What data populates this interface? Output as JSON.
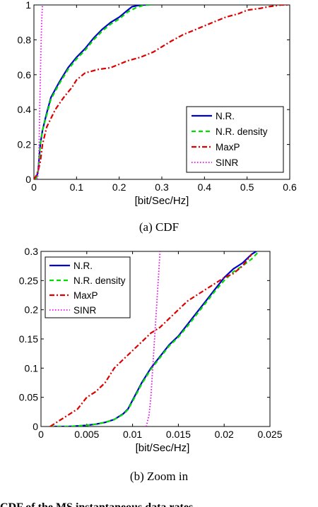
{
  "captions": {
    "top": "(a)  CDF",
    "bottom": "(b)  Zoom in"
  },
  "bottom_text_fragment": "CDF of the MS instantaneous data rates",
  "chart_data": [
    {
      "type": "line",
      "title": "",
      "xlabel": "[bit/Sec/Hz]",
      "ylabel": "",
      "xlim": [
        0,
        0.6
      ],
      "ylim": [
        0,
        1
      ],
      "xticks": [
        "0",
        "0.1",
        "0.2",
        "0.3",
        "0.4",
        "0.5",
        "0.6"
      ],
      "yticks": [
        "0",
        "0.2",
        "0.4",
        "0.6",
        "0.8",
        "1"
      ],
      "grid": false,
      "legend_position": "lower-right",
      "series": [
        {
          "name": "N.R.",
          "color": "#0000cc",
          "style": "solid",
          "x": [
            0.005,
            0.01,
            0.015,
            0.02,
            0.03,
            0.04,
            0.06,
            0.08,
            0.1,
            0.12,
            0.14,
            0.16,
            0.18,
            0.2,
            0.22,
            0.23,
            0.25,
            0.27
          ],
          "y": [
            0.0,
            0.05,
            0.2,
            0.28,
            0.38,
            0.47,
            0.56,
            0.64,
            0.7,
            0.75,
            0.81,
            0.86,
            0.9,
            0.93,
            0.97,
            0.99,
            1.0,
            1.0
          ]
        },
        {
          "name": "N.R. density",
          "color": "#00dd00",
          "style": "dashed",
          "x": [
            0.005,
            0.01,
            0.015,
            0.02,
            0.03,
            0.04,
            0.06,
            0.08,
            0.1,
            0.12,
            0.14,
            0.16,
            0.18,
            0.2,
            0.22,
            0.24,
            0.26,
            0.28
          ],
          "y": [
            0.0,
            0.05,
            0.2,
            0.28,
            0.37,
            0.46,
            0.55,
            0.63,
            0.69,
            0.74,
            0.8,
            0.85,
            0.89,
            0.92,
            0.96,
            0.985,
            1.0,
            1.0
          ]
        },
        {
          "name": "MaxP",
          "color": "#dd0000",
          "style": "dashdot",
          "x": [
            0.0,
            0.005,
            0.01,
            0.015,
            0.02,
            0.03,
            0.05,
            0.07,
            0.09,
            0.1,
            0.12,
            0.15,
            0.18,
            0.2,
            0.22,
            0.25,
            0.28,
            0.3,
            0.32,
            0.35,
            0.38,
            0.4,
            0.43,
            0.45,
            0.48,
            0.5,
            0.53,
            0.55,
            0.58,
            0.6
          ],
          "y": [
            0.0,
            0.02,
            0.05,
            0.1,
            0.2,
            0.3,
            0.4,
            0.47,
            0.53,
            0.57,
            0.61,
            0.63,
            0.64,
            0.66,
            0.68,
            0.7,
            0.73,
            0.76,
            0.79,
            0.83,
            0.86,
            0.88,
            0.91,
            0.93,
            0.95,
            0.97,
            0.98,
            0.99,
            1.0,
            1.0
          ]
        },
        {
          "name": "SINR",
          "color": "#ee00ee",
          "style": "dotted",
          "x": [
            0.008,
            0.01,
            0.011,
            0.012,
            0.013,
            0.014,
            0.016,
            0.018,
            0.02
          ],
          "y": [
            0.0,
            0.03,
            0.08,
            0.17,
            0.3,
            0.45,
            0.7,
            0.9,
            1.0
          ]
        }
      ]
    },
    {
      "type": "line",
      "title": "",
      "xlabel": "[bit/Sec/Hz]",
      "ylabel": "",
      "xlim": [
        0,
        0.025
      ],
      "ylim": [
        0,
        0.3
      ],
      "xticks": [
        "0",
        "0.005",
        "0.01",
        "0.015",
        "0.02",
        "0.025"
      ],
      "yticks": [
        "0",
        "0.05",
        "0.1",
        "0.15",
        "0.2",
        "0.25",
        "0.3"
      ],
      "grid": false,
      "legend_position": "top-left",
      "series": [
        {
          "name": "N.R.",
          "color": "#0000cc",
          "style": "solid",
          "x": [
            0.001,
            0.002,
            0.003,
            0.004,
            0.005,
            0.006,
            0.007,
            0.008,
            0.009,
            0.0095,
            0.01,
            0.0105,
            0.011,
            0.012,
            0.013,
            0.014,
            0.015,
            0.016,
            0.017,
            0.018,
            0.019,
            0.02,
            0.021,
            0.022,
            0.023,
            0.0235
          ],
          "y": [
            0.0,
            0.0,
            0.0,
            0.001,
            0.002,
            0.004,
            0.007,
            0.012,
            0.022,
            0.03,
            0.045,
            0.06,
            0.075,
            0.1,
            0.12,
            0.14,
            0.155,
            0.175,
            0.195,
            0.215,
            0.235,
            0.255,
            0.27,
            0.28,
            0.295,
            0.3
          ]
        },
        {
          "name": "N.R. density",
          "color": "#00dd00",
          "style": "dashed",
          "x": [
            0.001,
            0.002,
            0.003,
            0.004,
            0.005,
            0.006,
            0.007,
            0.008,
            0.009,
            0.0095,
            0.01,
            0.0105,
            0.011,
            0.012,
            0.013,
            0.014,
            0.015,
            0.016,
            0.017,
            0.018,
            0.019,
            0.02,
            0.021,
            0.022,
            0.023,
            0.0238
          ],
          "y": [
            0.0,
            0.0,
            0.0,
            0.001,
            0.002,
            0.004,
            0.007,
            0.012,
            0.021,
            0.029,
            0.043,
            0.058,
            0.073,
            0.098,
            0.118,
            0.138,
            0.153,
            0.172,
            0.192,
            0.212,
            0.232,
            0.25,
            0.265,
            0.275,
            0.287,
            0.3
          ]
        },
        {
          "name": "MaxP",
          "color": "#dd0000",
          "style": "dashdot",
          "x": [
            0.001,
            0.002,
            0.003,
            0.004,
            0.005,
            0.0055,
            0.006,
            0.007,
            0.008,
            0.009,
            0.01,
            0.011,
            0.012,
            0.013,
            0.014,
            0.015,
            0.016,
            0.017,
            0.018,
            0.019,
            0.02,
            0.021,
            0.022,
            0.023
          ],
          "y": [
            0.0,
            0.01,
            0.02,
            0.03,
            0.05,
            0.055,
            0.06,
            0.075,
            0.1,
            0.115,
            0.13,
            0.145,
            0.16,
            0.17,
            0.185,
            0.2,
            0.215,
            0.225,
            0.235,
            0.245,
            0.255,
            0.262,
            0.275,
            0.295
          ]
        },
        {
          "name": "SINR",
          "color": "#ee00ee",
          "style": "dotted",
          "x": [
            0.0115,
            0.0118,
            0.012,
            0.0122,
            0.0124,
            0.0126,
            0.0128,
            0.013
          ],
          "y": [
            0.0,
            0.02,
            0.05,
            0.1,
            0.15,
            0.2,
            0.25,
            0.3
          ]
        }
      ]
    }
  ]
}
